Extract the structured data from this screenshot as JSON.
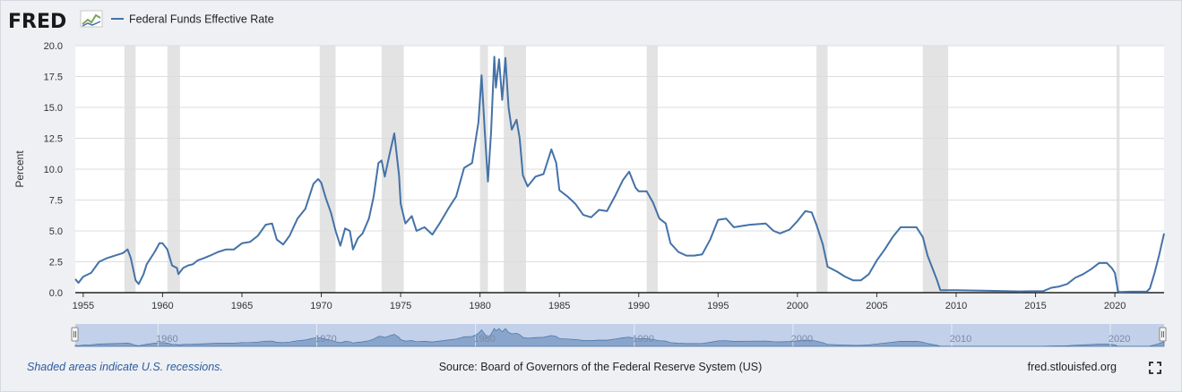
{
  "header": {
    "logo_text": "FRED",
    "logo_icon": "chart-trend-icon"
  },
  "legend": {
    "series_name": "Federal Funds Effective Rate",
    "color": "#4572a7"
  },
  "footer": {
    "note": "Shaded areas indicate U.S. recessions.",
    "source": "Source: Board of Governors of the Federal Reserve System (US)",
    "site": "fred.stlouisfed.org",
    "fullscreen_icon": "fullscreen-icon"
  },
  "colors": {
    "line": "#4572a7",
    "recession": "#e3e3e3",
    "plot_bg": "#ffffff",
    "page_bg": "#eef0f4",
    "navigator_fill": "#b8c8e6",
    "navigator_series": "#4572a7"
  },
  "chart_data": {
    "type": "line",
    "title": "",
    "xlabel": "",
    "ylabel": "Percent",
    "xlim": [
      1954.5,
      2023.1
    ],
    "ylim": [
      0,
      20
    ],
    "grid": true,
    "legend_position": "top-left",
    "yticks": [
      "0.0",
      "2.5",
      "5.0",
      "7.5",
      "10.0",
      "12.5",
      "15.0",
      "17.5",
      "20.0"
    ],
    "xticks": [
      "1955",
      "1960",
      "1965",
      "1970",
      "1975",
      "1980",
      "1985",
      "1990",
      "1995",
      "2000",
      "2005",
      "2010",
      "2015",
      "2020"
    ],
    "navigator_ticks": [
      "1960",
      "1970",
      "1980",
      "1990",
      "2000",
      "2010",
      "2020"
    ],
    "recessions": [
      [
        1957.6,
        1958.3
      ],
      [
        1960.3,
        1961.1
      ],
      [
        1969.9,
        1970.9
      ],
      [
        1973.8,
        1975.2
      ],
      [
        1980.0,
        1980.5
      ],
      [
        1981.5,
        1982.9
      ],
      [
        1990.5,
        1991.2
      ],
      [
        2001.2,
        2001.9
      ],
      [
        2007.9,
        2009.5
      ],
      [
        2020.1,
        2020.3
      ]
    ],
    "series": [
      {
        "name": "Federal Funds Effective Rate",
        "x": [
          1954.5,
          1954.7,
          1955.0,
          1955.5,
          1956.0,
          1956.5,
          1957.0,
          1957.5,
          1957.8,
          1958.0,
          1958.3,
          1958.5,
          1958.8,
          1959.0,
          1959.5,
          1959.8,
          1960.0,
          1960.3,
          1960.6,
          1960.9,
          1961.0,
          1961.3,
          1961.6,
          1961.9,
          1962.2,
          1962.6,
          1963.0,
          1963.5,
          1964.0,
          1964.5,
          1965.0,
          1965.5,
          1966.0,
          1966.5,
          1966.9,
          1967.2,
          1967.6,
          1968.0,
          1968.5,
          1969.0,
          1969.5,
          1969.8,
          1970.0,
          1970.3,
          1970.6,
          1970.9,
          1971.2,
          1971.5,
          1971.8,
          1972.0,
          1972.3,
          1972.6,
          1973.0,
          1973.3,
          1973.6,
          1973.8,
          1974.0,
          1974.3,
          1974.6,
          1974.9,
          1975.0,
          1975.3,
          1975.7,
          1976.0,
          1976.5,
          1977.0,
          1977.5,
          1978.0,
          1978.5,
          1979.0,
          1979.5,
          1979.9,
          1980.1,
          1980.3,
          1980.5,
          1980.7,
          1980.9,
          1981.0,
          1981.2,
          1981.4,
          1981.6,
          1981.8,
          1982.0,
          1982.3,
          1982.5,
          1982.7,
          1983.0,
          1983.5,
          1984.0,
          1984.5,
          1984.8,
          1985.0,
          1985.5,
          1986.0,
          1986.5,
          1987.0,
          1987.5,
          1988.0,
          1988.5,
          1989.0,
          1989.4,
          1989.8,
          1990.0,
          1990.5,
          1990.9,
          1991.3,
          1991.7,
          1992.0,
          1992.5,
          1993.0,
          1993.5,
          1994.0,
          1994.5,
          1995.0,
          1995.5,
          1996.0,
          1997.0,
          1998.0,
          1998.5,
          1998.9,
          1999.5,
          2000.0,
          2000.5,
          2000.9,
          2001.2,
          2001.6,
          2001.9,
          2002.5,
          2003.0,
          2003.5,
          2004.0,
          2004.5,
          2005.0,
          2005.5,
          2006.0,
          2006.5,
          2007.0,
          2007.5,
          2007.9,
          2008.2,
          2008.5,
          2008.8,
          2009.0,
          2010.0,
          2012.0,
          2014.0,
          2015.5,
          2016.0,
          2016.5,
          2017.0,
          2017.5,
          2018.0,
          2018.5,
          2019.0,
          2019.5,
          2019.8,
          2020.0,
          2020.2,
          2020.3,
          2021.0,
          2022.0,
          2022.2,
          2022.5,
          2022.8,
          2023.1
        ],
        "y": [
          1.1,
          0.8,
          1.3,
          1.6,
          2.5,
          2.8,
          3.0,
          3.2,
          3.5,
          2.8,
          1.0,
          0.7,
          1.5,
          2.3,
          3.3,
          4.0,
          4.0,
          3.5,
          2.2,
          2.0,
          1.5,
          2.0,
          2.2,
          2.3,
          2.6,
          2.8,
          3.0,
          3.3,
          3.5,
          3.5,
          4.0,
          4.1,
          4.6,
          5.5,
          5.6,
          4.3,
          3.9,
          4.6,
          6.0,
          6.8,
          8.8,
          9.2,
          8.9,
          7.6,
          6.5,
          5.0,
          3.8,
          5.2,
          5.0,
          3.5,
          4.4,
          4.8,
          6.0,
          7.8,
          10.5,
          10.7,
          9.4,
          11.2,
          12.9,
          9.5,
          7.2,
          5.6,
          6.2,
          5.0,
          5.3,
          4.7,
          5.7,
          6.8,
          7.8,
          10.1,
          10.5,
          13.8,
          17.6,
          13.0,
          9.0,
          13.0,
          19.1,
          16.6,
          18.9,
          15.6,
          19.0,
          15.0,
          13.2,
          14.0,
          12.5,
          9.5,
          8.6,
          9.4,
          9.6,
          11.6,
          10.5,
          8.3,
          7.8,
          7.2,
          6.3,
          6.1,
          6.7,
          6.6,
          7.8,
          9.1,
          9.8,
          8.5,
          8.2,
          8.2,
          7.3,
          6.0,
          5.6,
          4.0,
          3.3,
          3.0,
          3.0,
          3.1,
          4.3,
          5.9,
          6.0,
          5.3,
          5.5,
          5.6,
          5.0,
          4.8,
          5.1,
          5.8,
          6.6,
          6.5,
          5.5,
          3.9,
          2.1,
          1.7,
          1.3,
          1.0,
          1.0,
          1.5,
          2.6,
          3.5,
          4.5,
          5.3,
          5.3,
          5.3,
          4.5,
          3.0,
          2.0,
          1.0,
          0.2,
          0.2,
          0.15,
          0.1,
          0.13,
          0.4,
          0.5,
          0.7,
          1.2,
          1.5,
          1.9,
          2.4,
          2.4,
          2.0,
          1.6,
          0.1,
          0.05,
          0.08,
          0.08,
          0.33,
          1.6,
          3.1,
          4.8
        ]
      }
    ]
  }
}
